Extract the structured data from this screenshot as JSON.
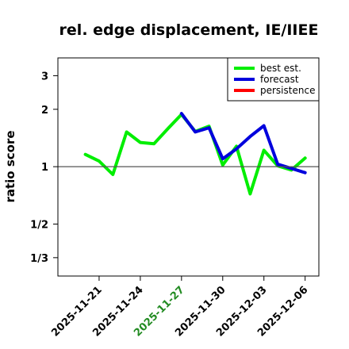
{
  "chart_data": {
    "type": "line",
    "title": "rel. edge displacement, IE/IIEE",
    "ylabel": "ratio score",
    "ylim": [
      0.267,
      3.72
    ],
    "y_scale": "log",
    "y_ticks": [
      {
        "value": 0.3333,
        "label": "1/3"
      },
      {
        "value": 0.5,
        "label": "1/2"
      },
      {
        "value": 1,
        "label": "1"
      },
      {
        "value": 2,
        "label": "2"
      },
      {
        "value": 3,
        "label": "3"
      }
    ],
    "reference_line": 1,
    "x_ticks": [
      {
        "date": "2025-11-21",
        "label": "2025-11-21",
        "color": "#000000"
      },
      {
        "date": "2025-11-24",
        "label": "2025-11-24",
        "color": "#000000"
      },
      {
        "date": "2025-11-27",
        "label": "2025-11-27",
        "color": "#228b22"
      },
      {
        "date": "2025-11-30",
        "label": "2025-11-30",
        "color": "#000000"
      },
      {
        "date": "2025-12-03",
        "label": "2025-12-03",
        "color": "#000000"
      },
      {
        "date": "2025-12-06",
        "label": "2025-12-06",
        "color": "#000000"
      }
    ],
    "xlim": [
      "2025-11-18",
      "2025-12-07"
    ],
    "grid": false,
    "legend_position": "top-right",
    "series": [
      {
        "name": "best est.",
        "color": "#00ee00",
        "x": [
          "2025-11-20",
          "2025-11-21",
          "2025-11-22",
          "2025-11-23",
          "2025-11-24",
          "2025-11-25",
          "2025-11-26",
          "2025-11-27",
          "2025-11-28",
          "2025-11-29",
          "2025-11-30",
          "2025-12-01",
          "2025-12-02",
          "2025-12-03",
          "2025-12-04",
          "2025-12-05",
          "2025-12-06"
        ],
        "values": [
          1.16,
          1.07,
          0.91,
          1.52,
          1.34,
          1.32,
          1.58,
          1.88,
          1.53,
          1.63,
          1.02,
          1.28,
          0.72,
          1.22,
          1.01,
          0.96,
          1.11
        ]
      },
      {
        "name": "forecast",
        "color": "#0000dd",
        "x": [
          "2025-11-27",
          "2025-11-28",
          "2025-11-29",
          "2025-11-30",
          "2025-12-01",
          "2025-12-02",
          "2025-12-03",
          "2025-12-04",
          "2025-12-05",
          "2025-12-06"
        ],
        "values": [
          1.9,
          1.52,
          1.6,
          1.1,
          1.24,
          1.44,
          1.64,
          1.03,
          0.98,
          0.93
        ]
      },
      {
        "name": "persistence",
        "color": "#ff0000",
        "x": [],
        "values": []
      }
    ]
  }
}
